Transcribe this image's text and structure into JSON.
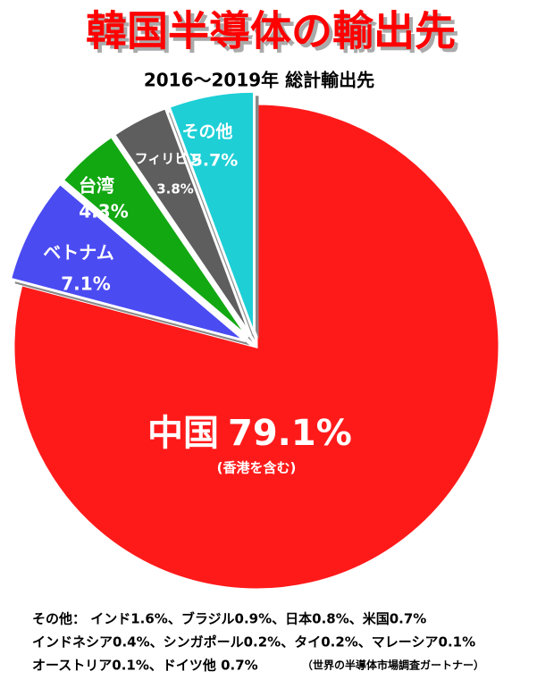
{
  "chart_data": {
    "type": "pie",
    "title": "韓国半導体の輸出先",
    "subtitle": "2016～2019年 総計輸出先",
    "categories": [
      "中国",
      "ベトナム",
      "台湾",
      "フィリピン",
      "その他"
    ],
    "values": [
      79.1,
      7.1,
      4.3,
      3.8,
      5.7
    ],
    "value_labels": [
      "79.1%",
      "7.1%",
      "4.3%",
      "3.8%",
      "5.7%"
    ],
    "colors": [
      "#ff1a1a",
      "#4b4bf2",
      "#12a812",
      "#5e5e5e",
      "#1ecfd6"
    ],
    "annotation": "(香港を含む)",
    "notes": [
      "その他：  インド1.6%、ブラジル0.9%、日本0.8%、米国0.7%",
      "インドネシア0.4%、シンガポール0.2%、タイ0.2%、マレーシア0.1%",
      "オーストリア0.1%、ドイツ他 0.7%"
    ],
    "source": "（世界の半導体市場調査ガートナー）"
  }
}
